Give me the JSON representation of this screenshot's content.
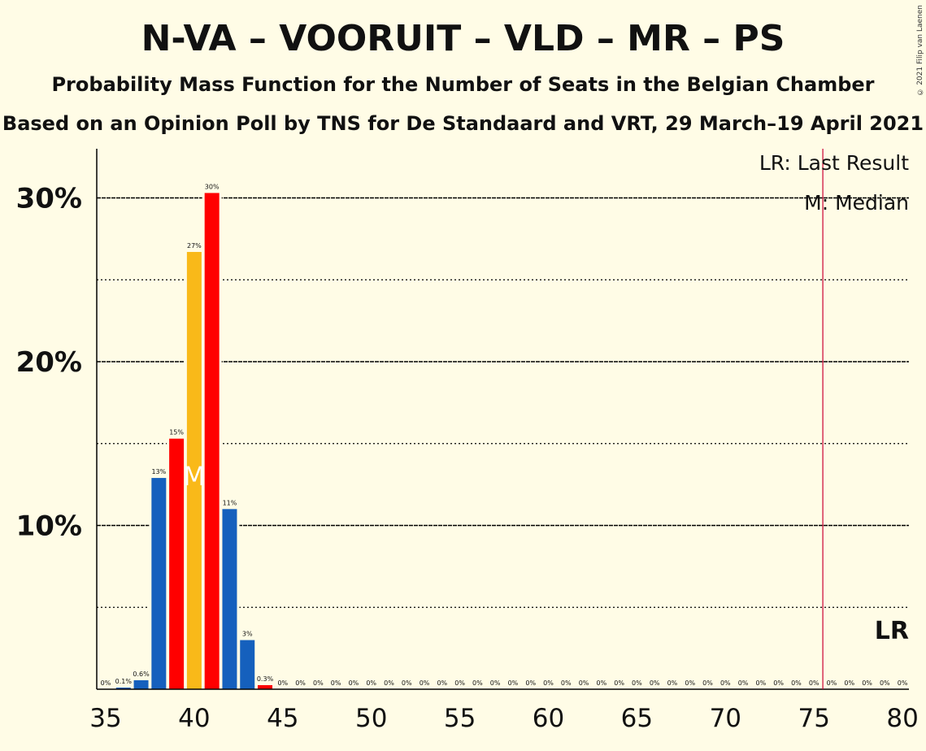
{
  "title": "N-VA – VOORUIT – VLD – MR – PS",
  "subtitle1": "Probability Mass Function for the Number of Seats in the Belgian Chamber",
  "subtitle2": "Based on an Opinion Poll by TNS for De Standaard and VRT, 29 March–19 April 2021",
  "copyright": "© 2021 Filip van Laenen",
  "legend": {
    "lr": "LR: Last Result",
    "median": "M: Median"
  },
  "lr_marker_label": "LR",
  "median_marker_label": "M",
  "colors": {
    "background": "#FFFCE6",
    "blue": "#1560BD",
    "red": "#FF0000",
    "yellow": "#F9B919",
    "lr_line": "#CC0033"
  },
  "chart_data": {
    "type": "bar",
    "x": [
      35,
      36,
      37,
      38,
      39,
      40,
      41,
      42,
      43,
      44,
      45,
      46,
      47,
      48,
      49,
      50,
      51,
      52,
      53,
      54,
      55,
      56,
      57,
      58,
      59,
      60,
      61,
      62,
      63,
      64,
      65,
      66,
      67,
      68,
      69,
      70,
      71,
      72,
      73,
      74,
      75,
      76,
      77,
      78,
      79,
      80
    ],
    "values": [
      0,
      0.1,
      0.6,
      13,
      15,
      27,
      30,
      11,
      3,
      0.3,
      0,
      0,
      0,
      0,
      0,
      0,
      0,
      0,
      0,
      0,
      0,
      0,
      0,
      0,
      0,
      0,
      0,
      0,
      0,
      0,
      0,
      0,
      0,
      0,
      0,
      0,
      0,
      0,
      0,
      0,
      0,
      0,
      0,
      0,
      0,
      0
    ],
    "labels": [
      "0%",
      "0.1%",
      "0.6%",
      "13%",
      "15%",
      "27%",
      "30%",
      "11%",
      "3%",
      "0.3%",
      "0%",
      "0%",
      "0%",
      "0%",
      "0%",
      "0%",
      "0%",
      "0%",
      "0%",
      "0%",
      "0%",
      "0%",
      "0%",
      "0%",
      "0%",
      "0%",
      "0%",
      "0%",
      "0%",
      "0%",
      "0%",
      "0%",
      "0%",
      "0%",
      "0%",
      "0%",
      "0%",
      "0%",
      "0%",
      "0%",
      "0%",
      "0%",
      "0%",
      "0%",
      "0%",
      "0%"
    ],
    "bar_colors": [
      "blue",
      "blue",
      "blue",
      "blue",
      "red",
      "yellow",
      "red",
      "blue",
      "blue",
      "red",
      "blue",
      "blue",
      "blue",
      "blue",
      "blue",
      "blue",
      "blue",
      "blue",
      "blue",
      "blue",
      "blue",
      "blue",
      "blue",
      "blue",
      "blue",
      "blue",
      "blue",
      "blue",
      "blue",
      "blue",
      "blue",
      "blue",
      "blue",
      "blue",
      "blue",
      "blue",
      "blue",
      "blue",
      "blue",
      "blue",
      "blue",
      "blue",
      "blue",
      "blue",
      "blue",
      "blue"
    ],
    "plotted_heights": [
      0,
      0.1,
      0.55,
      12.9,
      15.3,
      26.7,
      30.3,
      11.0,
      3.0,
      0.25,
      0,
      0,
      0,
      0,
      0,
      0,
      0,
      0,
      0,
      0,
      0,
      0,
      0,
      0,
      0,
      0,
      0,
      0,
      0,
      0,
      0,
      0,
      0,
      0,
      0,
      0,
      0,
      0,
      0,
      0,
      0,
      0,
      0,
      0,
      0,
      0
    ],
    "x_ticks": [
      35,
      40,
      45,
      50,
      55,
      60,
      65,
      70,
      75,
      80
    ],
    "y_ticks": [
      10,
      20,
      30
    ],
    "y_tick_labels": [
      "10%",
      "20%",
      "30%"
    ],
    "y_minor_ticks": [
      5,
      15,
      25
    ],
    "ylim": [
      0,
      33
    ],
    "xlim": [
      34.5,
      80.5
    ],
    "median": 40,
    "last_result": 75.5,
    "grid": true,
    "legend_position": "top-right"
  }
}
